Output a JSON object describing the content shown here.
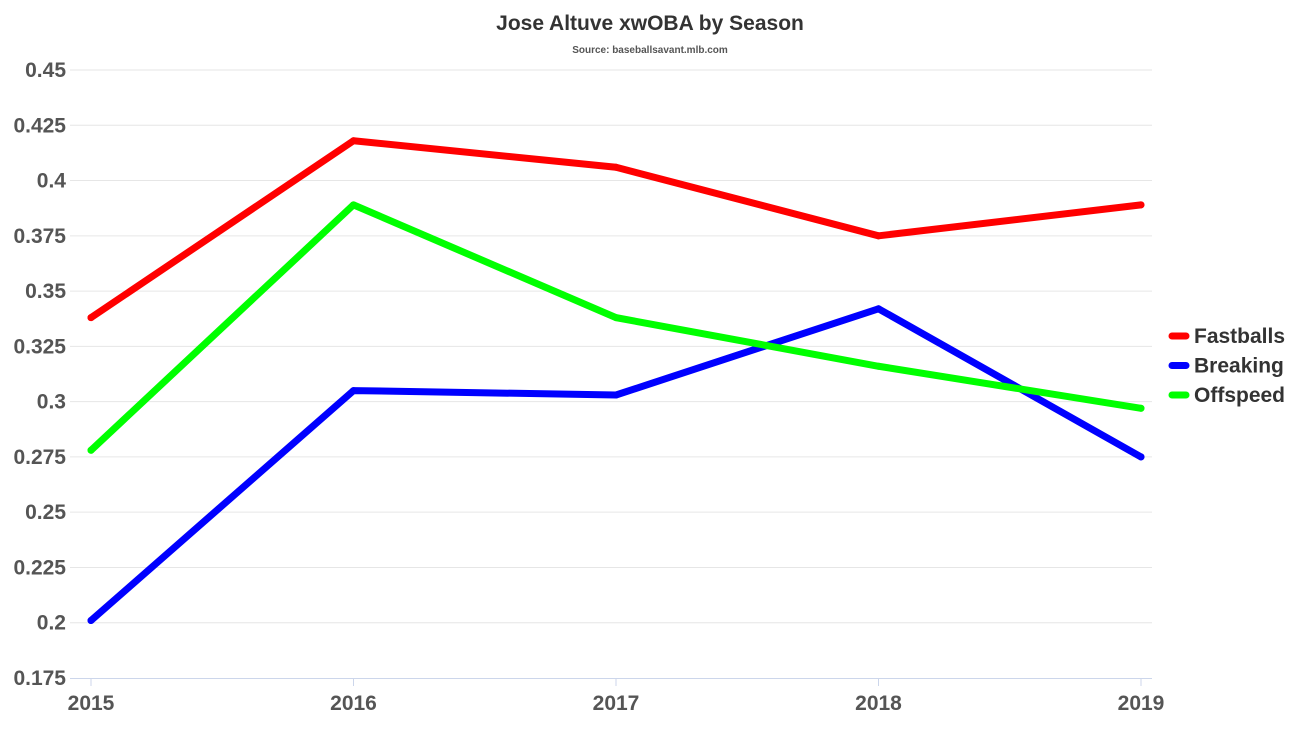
{
  "chart_data": {
    "type": "line",
    "title": "Jose Altuve xwOBA by Season",
    "subtitle": "Source: baseballsavant.mlb.com",
    "xlabel": "",
    "ylabel": "",
    "categories": [
      "2015",
      "2016",
      "2017",
      "2018",
      "2019"
    ],
    "ylim": [
      0.175,
      0.45
    ],
    "yticks": [
      0.175,
      0.2,
      0.225,
      0.25,
      0.275,
      0.3,
      0.325,
      0.35,
      0.375,
      0.4,
      0.425,
      0.45
    ],
    "ytick_labels": [
      "0.175",
      "0.2",
      "0.225",
      "0.25",
      "0.275",
      "0.3",
      "0.325",
      "0.35",
      "0.375",
      "0.4",
      "0.425",
      "0.45"
    ],
    "grid": true,
    "legend_position": "right",
    "series": [
      {
        "name": "Fastballs",
        "color": "#ff0000",
        "values": [
          0.338,
          0.418,
          0.406,
          0.375,
          0.389
        ]
      },
      {
        "name": "Breaking",
        "color": "#0000ff",
        "values": [
          0.201,
          0.305,
          0.303,
          0.342,
          0.275
        ]
      },
      {
        "name": "Offspeed",
        "color": "#00ff00",
        "values": [
          0.278,
          0.389,
          0.338,
          0.316,
          0.297
        ]
      }
    ]
  }
}
